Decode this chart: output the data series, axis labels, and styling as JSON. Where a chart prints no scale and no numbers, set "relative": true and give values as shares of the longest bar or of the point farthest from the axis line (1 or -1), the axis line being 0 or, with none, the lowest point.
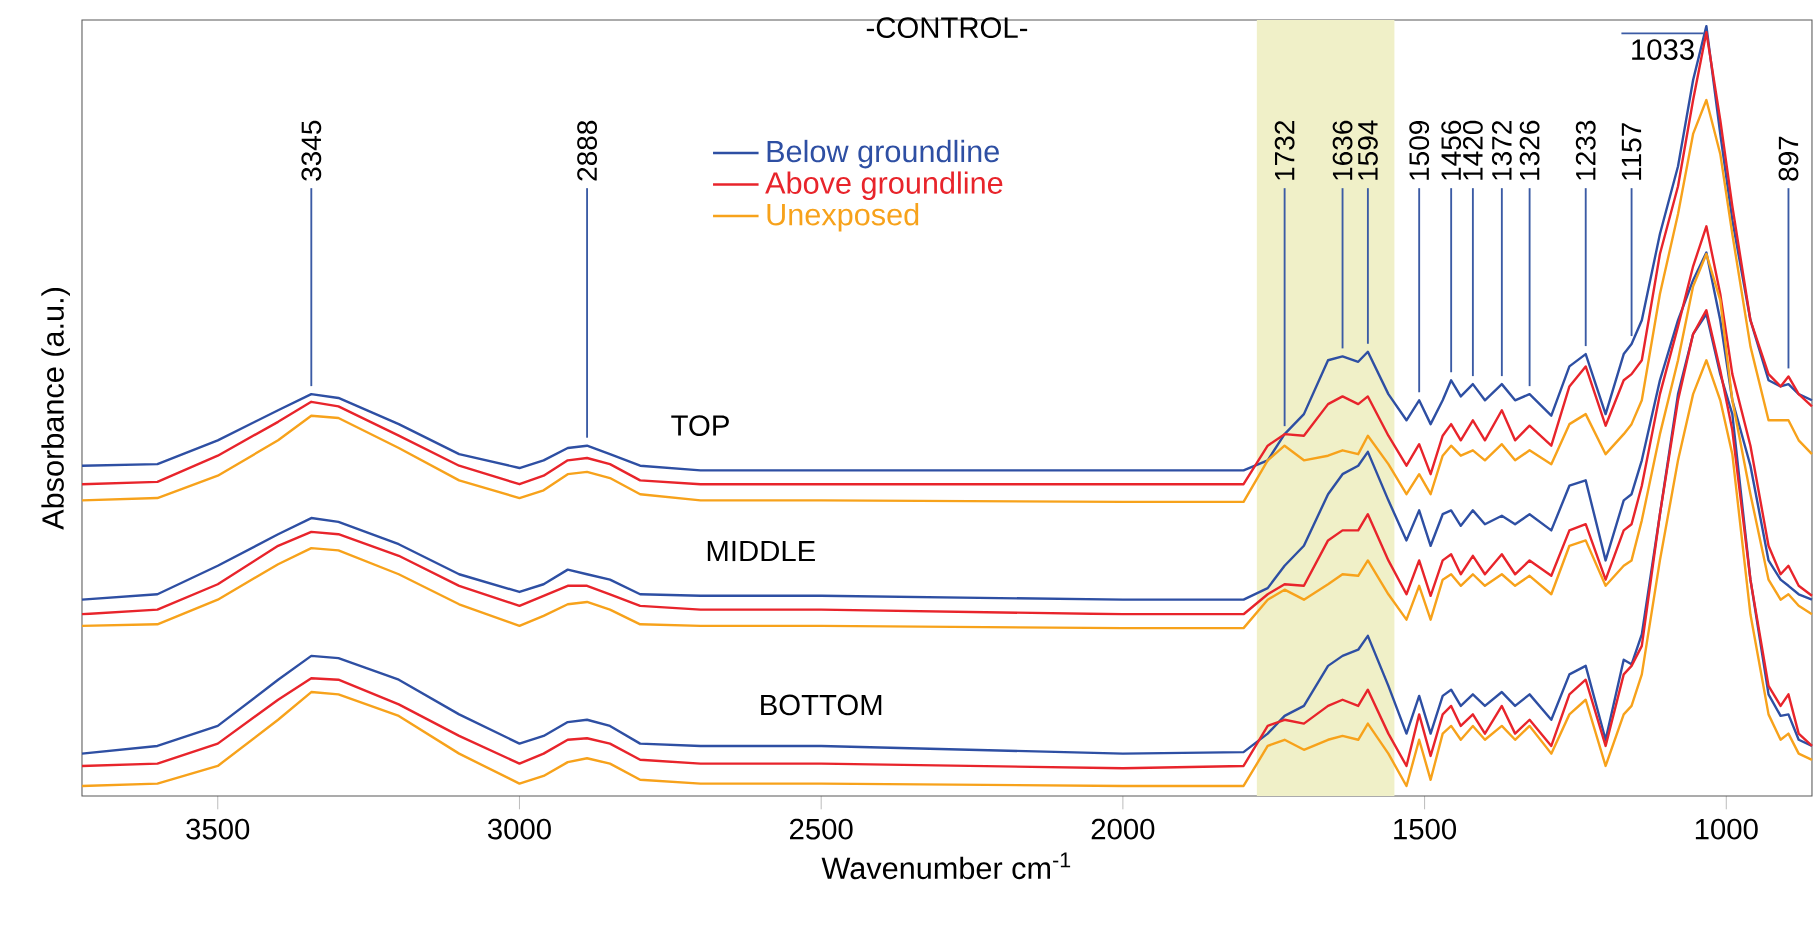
{
  "chart_data": {
    "type": "line",
    "title": "-CONTROL-",
    "xlabel": "Wavenumber cm$^{-1}$",
    "ylabel": "Absorbance (a.u.)",
    "relative": true,
    "tick_labels": "x",
    "legend": "top",
    "xlim": [
      3725,
      858
    ],
    "xticks": [
      3500,
      3000,
      2500,
      2000,
      1500,
      1000
    ],
    "x": [
      3725,
      3600,
      3500,
      3400,
      3345,
      3300,
      3200,
      3100,
      3000,
      2960,
      2920,
      2888,
      2850,
      2800,
      2700,
      2600,
      2500,
      2000,
      1800,
      1760,
      1732,
      1700,
      1660,
      1636,
      1610,
      1594,
      1560,
      1530,
      1509,
      1490,
      1470,
      1456,
      1440,
      1420,
      1400,
      1372,
      1350,
      1326,
      1290,
      1260,
      1233,
      1200,
      1170,
      1157,
      1140,
      1110,
      1080,
      1055,
      1033,
      1010,
      990,
      960,
      930,
      910,
      897,
      880,
      858
    ],
    "bands": [
      {
        "axis": "x",
        "from": 1778,
        "to": 1550,
        "color": "#f0f0c8"
      }
    ],
    "series": [
      {
        "name": "Below groundline",
        "color": "#2e4fa3",
        "values": [
          0.429,
          0.431,
          0.462,
          0.501,
          0.522,
          0.517,
          0.483,
          0.444,
          0.426,
          0.436,
          0.452,
          0.455,
          0.444,
          0.429,
          0.423,
          0.423,
          0.423,
          0.423,
          0.423,
          0.436,
          0.47,
          0.496,
          0.566,
          0.571,
          0.564,
          0.577,
          0.522,
          0.488,
          0.514,
          0.483,
          0.514,
          0.54,
          0.519,
          0.535,
          0.514,
          0.535,
          0.514,
          0.522,
          0.494,
          0.558,
          0.574,
          0.496,
          0.574,
          0.587,
          0.618,
          0.73,
          0.818,
          0.93,
          1,
          0.86,
          0.748,
          0.618,
          0.54,
          0.532,
          0.535,
          0.522,
          0.514
        ]
      },
      {
        "name": "Above groundline",
        "color": "#e8242b",
        "values": [
          0.405,
          0.408,
          0.442,
          0.486,
          0.512,
          0.506,
          0.468,
          0.429,
          0.405,
          0.416,
          0.436,
          0.439,
          0.431,
          0.41,
          0.405,
          0.405,
          0.405,
          0.405,
          0.405,
          0.455,
          0.47,
          0.468,
          0.509,
          0.519,
          0.509,
          0.519,
          0.468,
          0.429,
          0.457,
          0.418,
          0.468,
          0.483,
          0.462,
          0.488,
          0.462,
          0.501,
          0.462,
          0.481,
          0.455,
          0.532,
          0.558,
          0.481,
          0.54,
          0.548,
          0.566,
          0.704,
          0.792,
          0.904,
          0.992,
          0.878,
          0.766,
          0.618,
          0.548,
          0.532,
          0.545,
          0.522,
          0.506
        ]
      },
      {
        "name": "Unexposed",
        "color": "#f7a21b",
        "values": [
          0.384,
          0.387,
          0.416,
          0.462,
          0.494,
          0.491,
          0.452,
          0.41,
          0.387,
          0.397,
          0.418,
          0.421,
          0.413,
          0.392,
          0.384,
          0.384,
          0.384,
          0.382,
          0.382,
          0.436,
          0.455,
          0.436,
          0.442,
          0.449,
          0.444,
          0.468,
          0.431,
          0.392,
          0.418,
          0.392,
          0.442,
          0.455,
          0.442,
          0.449,
          0.436,
          0.457,
          0.436,
          0.449,
          0.431,
          0.483,
          0.496,
          0.444,
          0.47,
          0.483,
          0.514,
          0.652,
          0.756,
          0.86,
          0.904,
          0.834,
          0.73,
          0.584,
          0.488,
          0.488,
          0.488,
          0.462,
          0.444
        ]
      },
      {
        "color": "#2e4fa3",
        "values": [
          0.255,
          0.262,
          0.299,
          0.34,
          0.361,
          0.356,
          0.327,
          0.288,
          0.265,
          0.275,
          0.294,
          0.288,
          0.281,
          0.262,
          0.26,
          0.26,
          0.26,
          0.255,
          0.255,
          0.27,
          0.299,
          0.325,
          0.392,
          0.418,
          0.429,
          0.447,
          0.384,
          0.332,
          0.371,
          0.325,
          0.366,
          0.371,
          0.351,
          0.371,
          0.353,
          0.364,
          0.353,
          0.366,
          0.345,
          0.403,
          0.41,
          0.306,
          0.384,
          0.392,
          0.436,
          0.54,
          0.618,
          0.67,
          0.706,
          0.618,
          0.514,
          0.429,
          0.306,
          0.281,
          0.273,
          0.262,
          0.255
        ]
      },
      {
        "color": "#e8242b",
        "values": [
          0.236,
          0.242,
          0.275,
          0.325,
          0.343,
          0.34,
          0.312,
          0.273,
          0.247,
          0.26,
          0.273,
          0.273,
          0.262,
          0.247,
          0.242,
          0.242,
          0.242,
          0.236,
          0.236,
          0.262,
          0.275,
          0.273,
          0.332,
          0.345,
          0.345,
          0.366,
          0.306,
          0.262,
          0.306,
          0.26,
          0.306,
          0.314,
          0.288,
          0.312,
          0.288,
          0.314,
          0.288,
          0.306,
          0.286,
          0.345,
          0.353,
          0.281,
          0.345,
          0.353,
          0.403,
          0.522,
          0.61,
          0.688,
          0.74,
          0.652,
          0.548,
          0.455,
          0.325,
          0.288,
          0.299,
          0.273,
          0.26
        ]
      },
      {
        "color": "#f7a21b",
        "values": [
          0.221,
          0.223,
          0.255,
          0.301,
          0.322,
          0.319,
          0.288,
          0.249,
          0.221,
          0.234,
          0.249,
          0.252,
          0.242,
          0.223,
          0.221,
          0.221,
          0.221,
          0.218,
          0.218,
          0.255,
          0.268,
          0.255,
          0.275,
          0.288,
          0.286,
          0.306,
          0.262,
          0.229,
          0.273,
          0.229,
          0.281,
          0.288,
          0.273,
          0.288,
          0.273,
          0.288,
          0.273,
          0.286,
          0.262,
          0.325,
          0.332,
          0.273,
          0.299,
          0.306,
          0.358,
          0.47,
          0.566,
          0.662,
          0.704,
          0.644,
          0.514,
          0.392,
          0.281,
          0.255,
          0.262,
          0.247,
          0.236
        ]
      },
      {
        "color": "#2e4fa3",
        "values": [
          0.055,
          0.065,
          0.091,
          0.151,
          0.182,
          0.179,
          0.151,
          0.106,
          0.068,
          0.078,
          0.096,
          0.099,
          0.091,
          0.068,
          0.065,
          0.065,
          0.065,
          0.055,
          0.057,
          0.081,
          0.104,
          0.117,
          0.169,
          0.182,
          0.19,
          0.208,
          0.143,
          0.081,
          0.13,
          0.081,
          0.13,
          0.138,
          0.117,
          0.132,
          0.117,
          0.135,
          0.117,
          0.132,
          0.099,
          0.158,
          0.169,
          0.073,
          0.177,
          0.171,
          0.21,
          0.366,
          0.522,
          0.6,
          0.626,
          0.548,
          0.496,
          0.281,
          0.132,
          0.104,
          0.106,
          0.073,
          0.065
        ]
      },
      {
        "color": "#e8242b",
        "values": [
          0.039,
          0.042,
          0.068,
          0.125,
          0.153,
          0.151,
          0.119,
          0.078,
          0.042,
          0.055,
          0.073,
          0.075,
          0.068,
          0.047,
          0.042,
          0.042,
          0.042,
          0.036,
          0.039,
          0.091,
          0.099,
          0.094,
          0.117,
          0.125,
          0.117,
          0.138,
          0.081,
          0.039,
          0.106,
          0.052,
          0.106,
          0.117,
          0.091,
          0.106,
          0.081,
          0.117,
          0.081,
          0.099,
          0.065,
          0.132,
          0.151,
          0.065,
          0.158,
          0.169,
          0.195,
          0.366,
          0.514,
          0.6,
          0.631,
          0.553,
          0.475,
          0.281,
          0.143,
          0.117,
          0.132,
          0.081,
          0.065
        ]
      },
      {
        "color": "#f7a21b",
        "values": [
          0.013,
          0.016,
          0.039,
          0.099,
          0.135,
          0.132,
          0.104,
          0.055,
          0.016,
          0.026,
          0.044,
          0.049,
          0.042,
          0.021,
          0.016,
          0.016,
          0.016,
          0.013,
          0.013,
          0.065,
          0.073,
          0.06,
          0.073,
          0.078,
          0.073,
          0.094,
          0.055,
          0.013,
          0.073,
          0.021,
          0.081,
          0.091,
          0.073,
          0.091,
          0.073,
          0.091,
          0.073,
          0.091,
          0.055,
          0.106,
          0.125,
          0.039,
          0.106,
          0.117,
          0.158,
          0.306,
          0.436,
          0.522,
          0.566,
          0.514,
          0.444,
          0.236,
          0.106,
          0.073,
          0.081,
          0.055,
          0.047
        ]
      }
    ],
    "annotations": [
      {
        "text": "3345",
        "x": 3345,
        "y": 0.522
      },
      {
        "text": "2888",
        "x": 2888,
        "y": 0.455
      },
      {
        "text": "1732",
        "x": 1732,
        "y": 0.47
      },
      {
        "text": "1636",
        "x": 1636,
        "y": 0.571
      },
      {
        "text": "1594",
        "x": 1594,
        "y": 0.577
      },
      {
        "text": "1509",
        "x": 1509,
        "y": 0.514
      },
      {
        "text": "1456",
        "x": 1456,
        "y": 0.54
      },
      {
        "text": "1420",
        "x": 1420,
        "y": 0.535
      },
      {
        "text": "1372",
        "x": 1372,
        "y": 0.535
      },
      {
        "text": "1326",
        "x": 1326,
        "y": 0.522
      },
      {
        "text": "1233",
        "x": 1233,
        "y": 0.574
      },
      {
        "text": "1157",
        "x": 1157,
        "y": 0.587
      },
      {
        "text": "1033",
        "x": 1033,
        "y": 1
      },
      {
        "text": "897",
        "x": 897,
        "y": 0.545
      },
      {
        "text": "TOP",
        "x": 2700,
        "y": 0.405
      },
      {
        "text": "MIDDLE",
        "x": 2600,
        "y": 0.242
      },
      {
        "text": "BOTTOM",
        "x": 2500,
        "y": 0.042
      }
    ]
  }
}
